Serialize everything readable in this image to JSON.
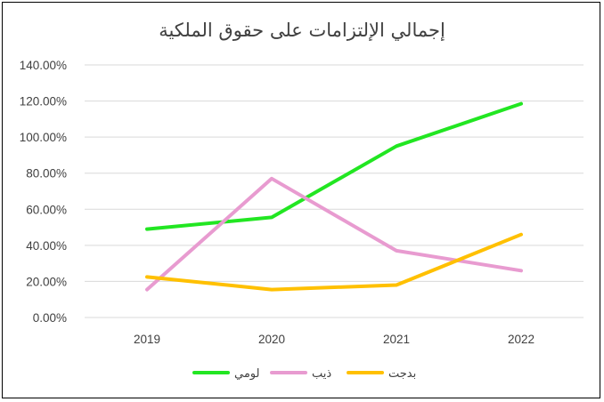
{
  "chart_data": {
    "type": "line",
    "title": "إجمالي الإلتزامات على حقوق الملكية",
    "categories": [
      "2019",
      "2020",
      "2021",
      "2022"
    ],
    "y_tick_labels": [
      "0.00%",
      "20.00%",
      "40.00%",
      "60.00%",
      "80.00%",
      "100.00%",
      "120.00%",
      "140.00%"
    ],
    "ylim": [
      0,
      140
    ],
    "y_unit": "percent",
    "grid": true,
    "legend_position": "bottom",
    "series": [
      {
        "name": "لومي",
        "color": "#22e622",
        "values": [
          49,
          55.5,
          95,
          118.5
        ]
      },
      {
        "name": "ذيب",
        "color": "#e89bd0",
        "values": [
          15.5,
          77,
          37,
          26
        ]
      },
      {
        "name": "بدجت",
        "color": "#ffc000",
        "values": [
          22.5,
          15.5,
          18,
          46
        ]
      }
    ]
  }
}
